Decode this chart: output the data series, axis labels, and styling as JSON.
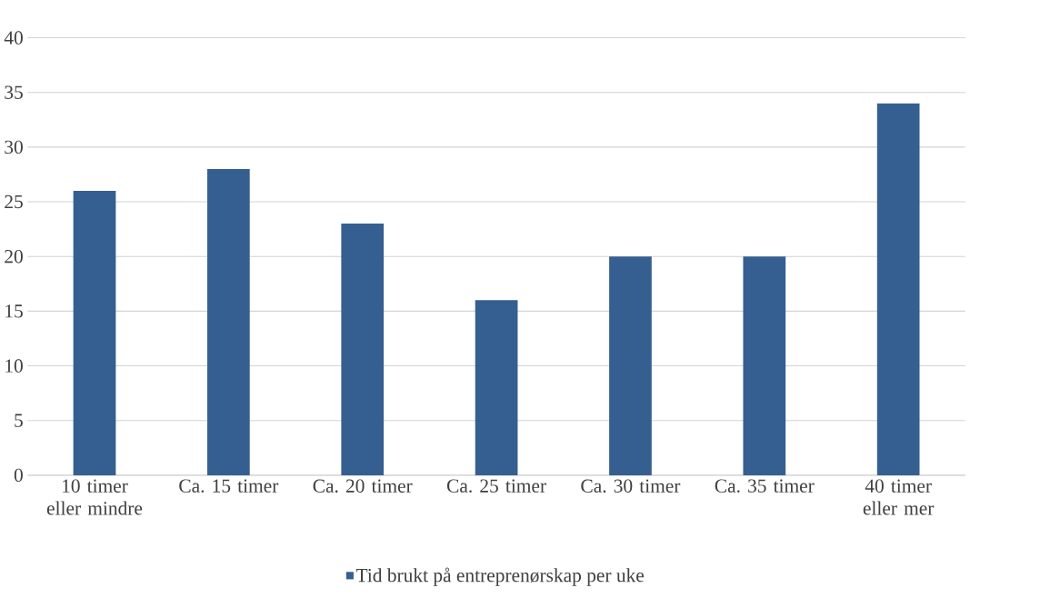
{
  "chart_data": {
    "type": "bar",
    "categories": [
      "10 timer eller mindre",
      "Ca. 15 timer",
      "Ca. 20 timer",
      "Ca. 25 timer",
      "Ca. 30 timer",
      "Ca. 35 timer",
      "40 timer eller mer"
    ],
    "series": [
      {
        "name": "Tid brukt på entreprenørskap per uke",
        "color": "#365f91",
        "values": [
          26,
          28,
          23,
          16,
          20,
          20,
          34
        ]
      }
    ],
    "ylim": [
      0,
      40
    ],
    "yticks": [
      0,
      5,
      10,
      15,
      20,
      25,
      30,
      35,
      40
    ],
    "grid": "y",
    "legend": "bottom"
  }
}
